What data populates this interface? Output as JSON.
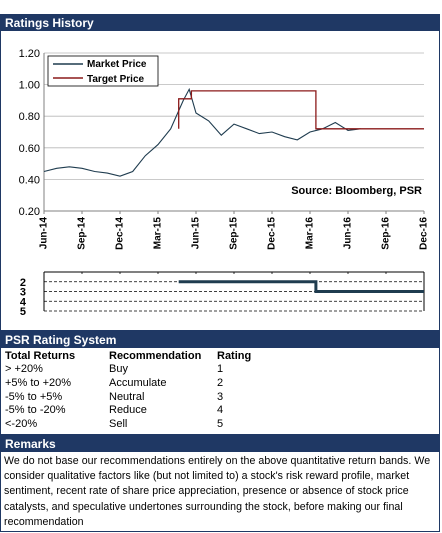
{
  "history": {
    "title": "Ratings History",
    "legend": {
      "market": "Market Price",
      "target": "Target Price"
    },
    "source": "Source: Bloomberg, PSR"
  },
  "colors": {
    "header_bg": "#1f3864",
    "market": "#1f3c4f",
    "target": "#8b1a1a",
    "rating_line": "#1f3c4f"
  },
  "chart_data": [
    {
      "type": "line",
      "title": "",
      "xlabel": "",
      "ylabel": "",
      "ylim": [
        0.2,
        1.2
      ],
      "yticks": [
        "0.20",
        "0.40",
        "0.60",
        "0.80",
        "1.00",
        "1.20"
      ],
      "xtick_labels": [
        "Jun-14",
        "Sep-14",
        "Dec-14",
        "Mar-15",
        "Jun-15",
        "Sep-15",
        "Dec-15",
        "Mar-16",
        "Jun-16",
        "Sep-16",
        "Dec-16"
      ],
      "xlim": [
        "2014-06",
        "2016-12"
      ],
      "grid": true,
      "legend_position": "top-left",
      "series": [
        {
          "name": "Market Price",
          "points": [
            [
              "2014-06",
              0.45
            ],
            [
              "2014-07",
              0.47
            ],
            [
              "2014-08",
              0.48
            ],
            [
              "2014-09",
              0.47
            ],
            [
              "2014-10",
              0.45
            ],
            [
              "2014-11",
              0.44
            ],
            [
              "2014-12",
              0.42
            ],
            [
              "2015-01",
              0.45
            ],
            [
              "2015-02",
              0.55
            ],
            [
              "2015-03",
              0.62
            ],
            [
              "2015-04",
              0.72
            ],
            [
              "2015-05",
              0.9
            ],
            [
              "2015-05-15",
              0.97
            ],
            [
              "2015-06",
              0.82
            ],
            [
              "2015-07",
              0.77
            ],
            [
              "2015-08",
              0.68
            ],
            [
              "2015-09",
              0.75
            ],
            [
              "2015-10",
              0.72
            ],
            [
              "2015-11",
              0.69
            ],
            [
              "2015-12",
              0.7
            ],
            [
              "2016-01",
              0.67
            ],
            [
              "2016-02",
              0.65
            ],
            [
              "2016-03",
              0.7
            ],
            [
              "2016-04",
              0.72
            ],
            [
              "2016-05",
              0.76
            ],
            [
              "2016-06",
              0.71
            ],
            [
              "2016-07",
              0.72
            ]
          ]
        },
        {
          "name": "Target Price",
          "points": [
            [
              "2015-04-20",
              0.72
            ],
            [
              "2015-04-20",
              0.91
            ],
            [
              "2015-05-20",
              0.91
            ],
            [
              "2015-05-20",
              0.96
            ],
            [
              "2016-03-15",
              0.96
            ],
            [
              "2016-03-15",
              0.72
            ],
            [
              "2016-12",
              0.72
            ]
          ]
        }
      ]
    },
    {
      "type": "line",
      "title": "",
      "yticks": [
        "2",
        "3",
        "4",
        "5"
      ],
      "ylim": [
        1,
        5
      ],
      "series": [
        {
          "name": "",
          "points": [
            [
              "2015-04-20",
              2
            ],
            [
              "2016-03-15",
              2
            ],
            [
              "2016-03-15",
              3
            ],
            [
              "2016-12",
              3
            ]
          ]
        }
      ]
    }
  ],
  "rating_system": {
    "title": "PSR Rating System",
    "headers": [
      "Total Returns",
      "Recommendation",
      "Rating"
    ],
    "rows": [
      [
        "> +20%",
        "Buy",
        "1"
      ],
      [
        "+5% to +20%",
        "Accumulate",
        "2"
      ],
      [
        "-5% to +5%",
        "Neutral",
        "3"
      ],
      [
        "-5% to -20%",
        "Reduce",
        "4"
      ],
      [
        "<-20%",
        "Sell",
        "5"
      ]
    ]
  },
  "remarks": {
    "title": "Remarks",
    "text": "We do not base our recommendations entirely on the  above quantitative return bands.  We consider qualitative factors like (but not limited to) a stock's risk reward profile, market sentiment, recent rate of share price appreciation, presence or absence of stock price catalysts, and speculative undertones surrounding the stock, before making our final recommendation"
  }
}
